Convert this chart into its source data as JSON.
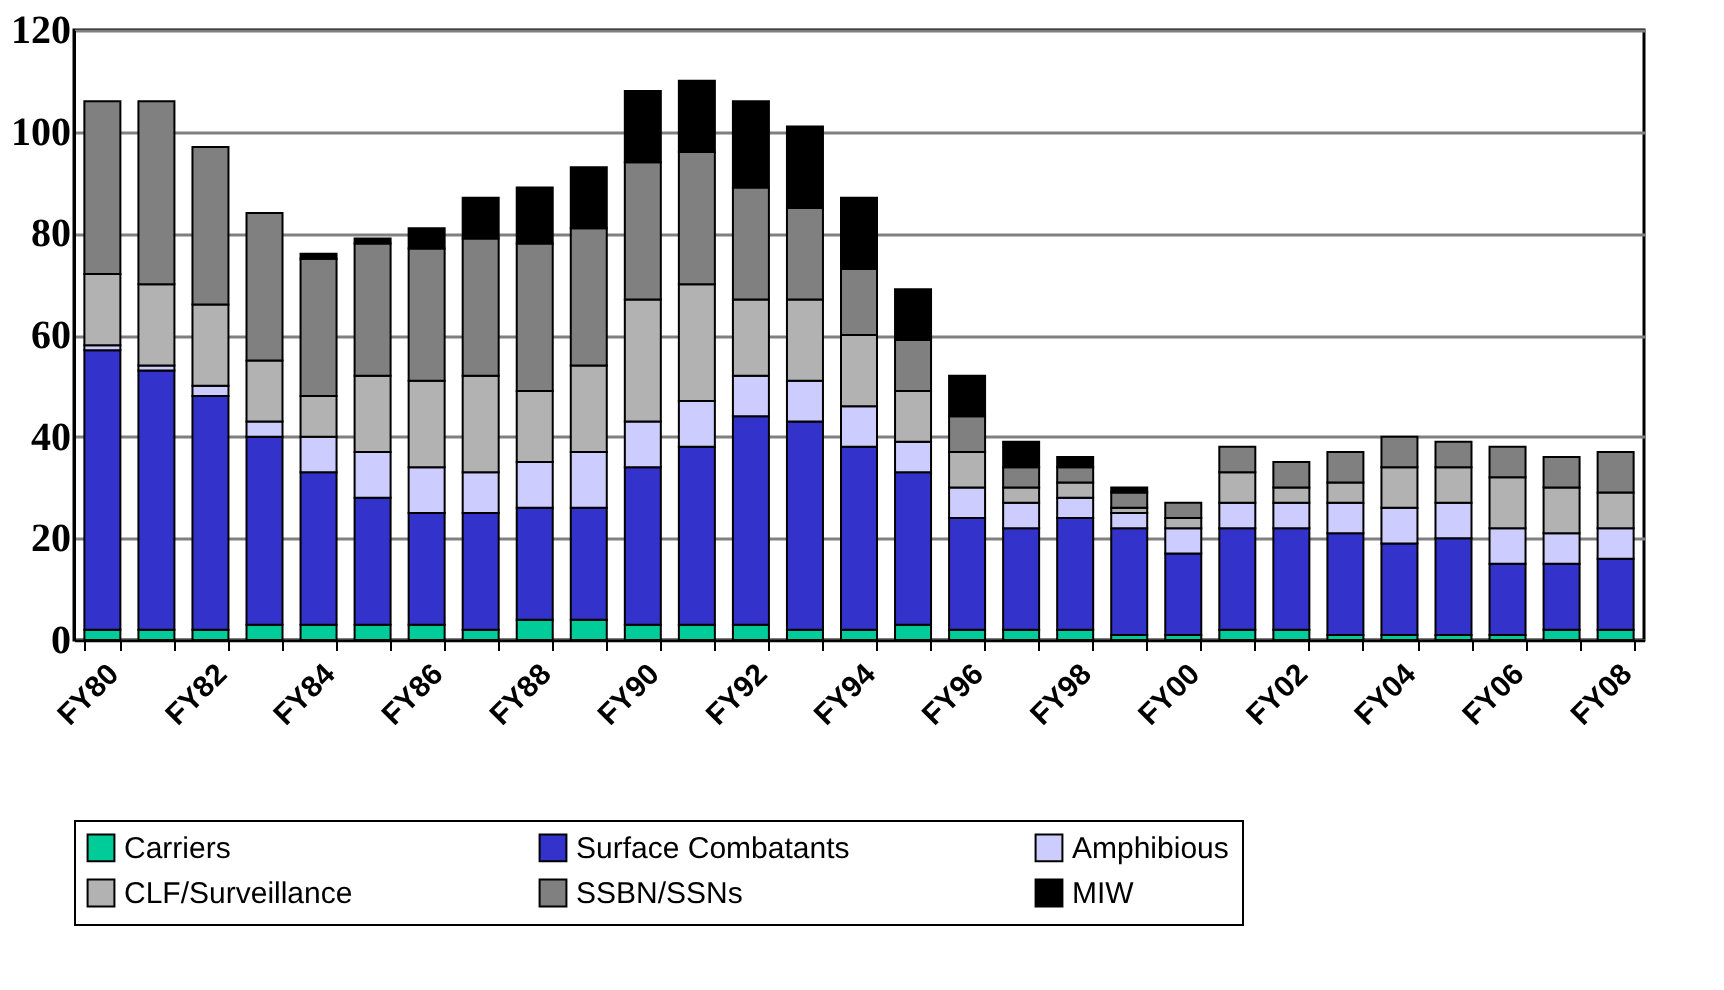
{
  "chart_data": {
    "type": "bar",
    "stacked": true,
    "categories": [
      "FY80",
      null,
      "FY82",
      null,
      "FY84",
      null,
      "FY86",
      null,
      "FY88",
      null,
      "FY90",
      null,
      "FY92",
      null,
      "FY94",
      null,
      "FY96",
      null,
      "FY98",
      null,
      "FY00",
      null,
      "FY02",
      null,
      "FY04",
      null,
      "FY06",
      null,
      "FY08"
    ],
    "series": [
      {
        "name": "Carriers",
        "color": "#00cc99",
        "values": [
          2,
          2,
          2,
          3,
          3,
          3,
          3,
          2,
          4,
          4,
          3,
          3,
          3,
          2,
          2,
          3,
          2,
          2,
          2,
          1,
          1,
          2,
          2,
          1,
          1,
          1,
          1,
          2,
          2
        ]
      },
      {
        "name": "Surface Combatants",
        "color": "#3333cc",
        "values": [
          55,
          51,
          46,
          37,
          30,
          25,
          22,
          23,
          22,
          22,
          31,
          35,
          41,
          41,
          36,
          30,
          22,
          20,
          22,
          21,
          16,
          20,
          20,
          20,
          18,
          19,
          14,
          13,
          14
        ]
      },
      {
        "name": "Amphibious",
        "color": "#ccccff",
        "values": [
          1,
          1,
          2,
          3,
          7,
          9,
          9,
          8,
          9,
          11,
          9,
          9,
          8,
          8,
          8,
          6,
          6,
          5,
          4,
          3,
          5,
          5,
          5,
          6,
          7,
          7,
          7,
          6,
          6
        ]
      },
      {
        "name": "CLF/Surveillance",
        "color": "#b2b2b2",
        "values": [
          14,
          16,
          16,
          12,
          8,
          15,
          17,
          19,
          14,
          17,
          24,
          23,
          15,
          16,
          14,
          10,
          7,
          3,
          3,
          1,
          2,
          6,
          3,
          4,
          8,
          7,
          10,
          9,
          7
        ]
      },
      {
        "name": "SSBN/SSNs",
        "color": "#808080",
        "values": [
          34,
          36,
          31,
          29,
          27,
          26,
          26,
          27,
          29,
          27,
          27,
          26,
          22,
          18,
          13,
          10,
          7,
          4,
          3,
          3,
          3,
          5,
          5,
          6,
          6,
          5,
          6,
          6,
          8
        ]
      },
      {
        "name": "MIW",
        "color": "#000000",
        "values": [
          null,
          null,
          null,
          null,
          1,
          1,
          4,
          8,
          11,
          12,
          14,
          14,
          17,
          16,
          14,
          10,
          8,
          5,
          2,
          1,
          null,
          null,
          null,
          null,
          null,
          null,
          null,
          null,
          null
        ]
      }
    ],
    "ylim": [
      0,
      120
    ],
    "yticks": [
      0,
      20,
      40,
      60,
      80,
      100,
      120
    ],
    "grid": "y",
    "legend": "bottom"
  }
}
